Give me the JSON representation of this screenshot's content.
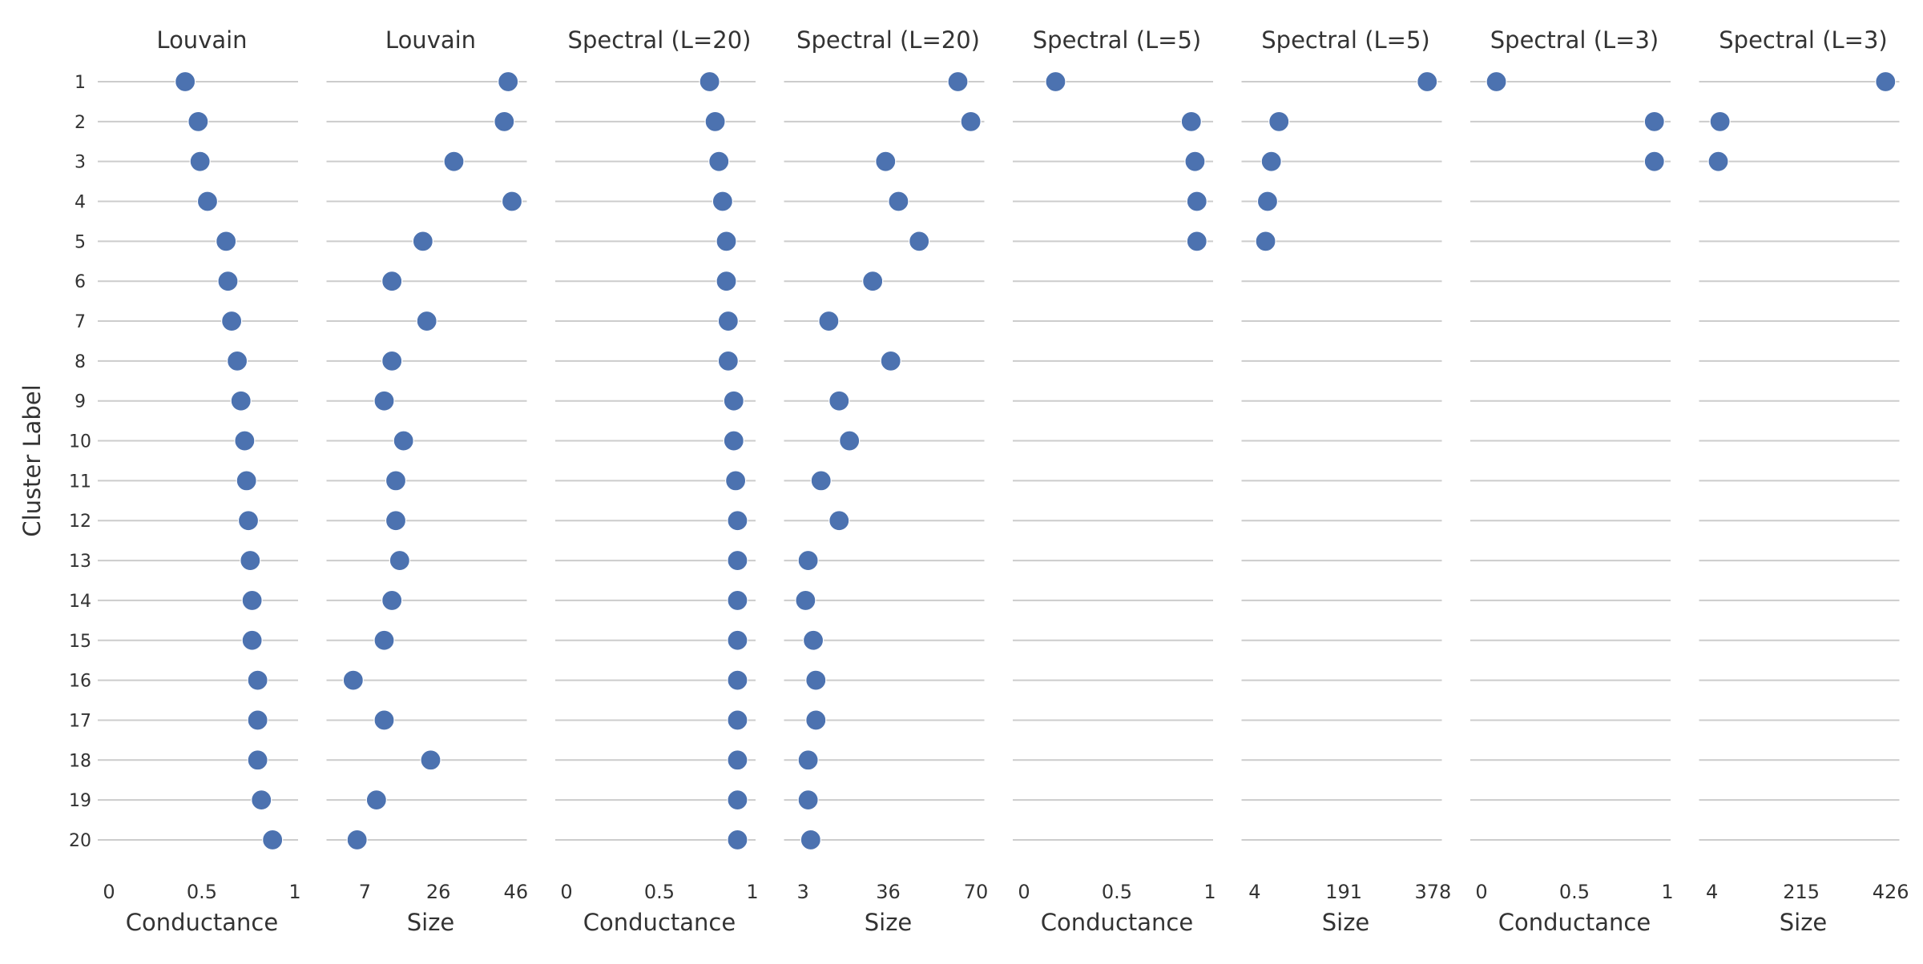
{
  "y_axis_label": "Cluster Label",
  "cluster_labels": [
    "1",
    "2",
    "3",
    "4",
    "5",
    "6",
    "7",
    "8",
    "9",
    "10",
    "11",
    "12",
    "13",
    "14",
    "15",
    "16",
    "17",
    "18",
    "19",
    "20"
  ],
  "colors": {
    "point": "#4c72b0",
    "grid": "#cccccc",
    "text": "#333333"
  },
  "chart_data": [
    {
      "type": "scatter",
      "title": "Louvain",
      "xlabel": "Conductance",
      "ylabel": "Cluster Label",
      "xlim": [
        0,
        1
      ],
      "ticks": [
        0,
        0.5,
        1
      ],
      "tick_labels": [
        "0",
        "0.5",
        "1"
      ],
      "values": [
        0.41,
        0.48,
        0.49,
        0.53,
        0.63,
        0.64,
        0.66,
        0.69,
        0.71,
        0.73,
        0.74,
        0.75,
        0.76,
        0.77,
        0.77,
        0.8,
        0.8,
        0.8,
        0.82,
        0.88
      ]
    },
    {
      "type": "scatter",
      "title": "Louvain",
      "xlabel": "Size",
      "ylabel": "",
      "xlim": [
        0,
        48
      ],
      "ticks": [
        7,
        26,
        46
      ],
      "tick_labels": [
        "7",
        "26",
        "46"
      ],
      "values": [
        44,
        43,
        30,
        45,
        22,
        14,
        23,
        14,
        12,
        17,
        15,
        15,
        16,
        14,
        12,
        4,
        12,
        24,
        10,
        5
      ]
    },
    {
      "type": "scatter",
      "title": "Spectral (L=20)",
      "xlabel": "Conductance",
      "ylabel": "",
      "xlim": [
        0,
        1
      ],
      "ticks": [
        0,
        0.5,
        1
      ],
      "tick_labels": [
        "0",
        "0.5",
        "1"
      ],
      "values": [
        0.77,
        0.8,
        0.82,
        0.84,
        0.86,
        0.86,
        0.87,
        0.87,
        0.9,
        0.9,
        0.91,
        0.92,
        0.92,
        0.92,
        0.92,
        0.92,
        0.92,
        0.92,
        0.92,
        0.92
      ]
    },
    {
      "type": "scatter",
      "title": "Spectral (L=20)",
      "xlabel": "Size",
      "ylabel": "",
      "xlim": [
        0,
        72
      ],
      "ticks": [
        3,
        36,
        70
      ],
      "tick_labels": [
        "3",
        "36",
        "70"
      ],
      "values": [
        63,
        68,
        35,
        40,
        48,
        30,
        13,
        37,
        17,
        21,
        10,
        17,
        5,
        4,
        7,
        8,
        8,
        5,
        5,
        6
      ]
    },
    {
      "type": "scatter",
      "title": "Spectral (L=5)",
      "xlabel": "Conductance",
      "ylabel": "",
      "xlim": [
        0,
        1
      ],
      "ticks": [
        0,
        0.5,
        1
      ],
      "tick_labels": [
        "0",
        "0.5",
        "1"
      ],
      "values": [
        0.17,
        0.9,
        0.92,
        0.93,
        0.93
      ]
    },
    {
      "type": "scatter",
      "title": "Spectral (L=5)",
      "xlabel": "Size",
      "ylabel": "",
      "xlim": [
        0,
        390
      ],
      "ticks": [
        4,
        191,
        378
      ],
      "tick_labels": [
        "4",
        "191",
        "378"
      ],
      "values": [
        366,
        55,
        39,
        31,
        27
      ]
    },
    {
      "type": "scatter",
      "title": "Spectral (L=3)",
      "xlabel": "Conductance",
      "ylabel": "",
      "xlim": [
        0,
        1
      ],
      "ticks": [
        0,
        0.5,
        1
      ],
      "tick_labels": [
        "0",
        "0.5",
        "1"
      ],
      "values": [
        0.08,
        0.93,
        0.93
      ]
    },
    {
      "type": "scatter",
      "title": "Spectral (L=3)",
      "xlabel": "Size",
      "ylabel": "",
      "xlim": [
        0,
        439
      ],
      "ticks": [
        4,
        215,
        426
      ],
      "tick_labels": [
        "4",
        "215",
        "426"
      ],
      "values": [
        414,
        23,
        19
      ]
    }
  ]
}
